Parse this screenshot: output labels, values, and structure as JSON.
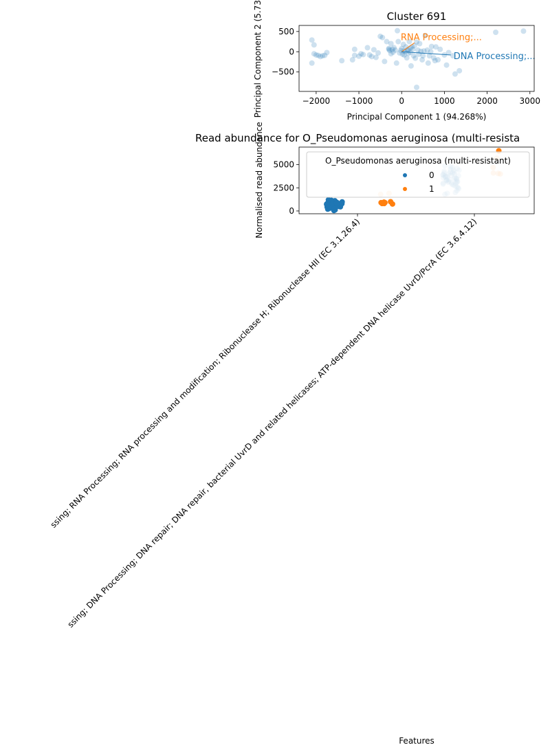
{
  "chart_data": [
    {
      "type": "scatter",
      "title": "Cluster 691",
      "xlabel": "Principal Component 1 (94.268%)",
      "ylabel": "Principal Component 2 (5.73",
      "xlim": [
        -2400,
        3100
      ],
      "ylim": [
        -980,
        650
      ],
      "xticks": [
        -2000,
        -1000,
        0,
        1000,
        2000,
        3000
      ],
      "xtick_labels": [
        "−2000",
        "−1000",
        "0",
        "1000",
        "2000",
        "3000"
      ],
      "yticks": [
        500,
        0,
        -500
      ],
      "ytick_labels": [
        "500",
        "0",
        "−500"
      ],
      "point_color": "#1f77b4",
      "points": [
        [
          -2100,
          290
        ],
        [
          -2050,
          -50
        ],
        [
          -2000,
          -80
        ],
        [
          -1950,
          -90
        ],
        [
          -1900,
          -120
        ],
        [
          -1850,
          -100
        ],
        [
          -1800,
          -90
        ],
        [
          -1750,
          -20
        ],
        [
          -2050,
          170
        ],
        [
          -2100,
          -280
        ],
        [
          -1400,
          -220
        ],
        [
          -1150,
          -200
        ],
        [
          -1100,
          60
        ],
        [
          -1100,
          -90
        ],
        [
          -1000,
          -110
        ],
        [
          -950,
          -50
        ],
        [
          -900,
          -70
        ],
        [
          -800,
          100
        ],
        [
          -750,
          -80
        ],
        [
          -700,
          -120
        ],
        [
          -650,
          50
        ],
        [
          -600,
          -140
        ],
        [
          -550,
          -30
        ],
        [
          -500,
          380
        ],
        [
          -450,
          350
        ],
        [
          -400,
          -240
        ],
        [
          -350,
          250
        ],
        [
          -300,
          80
        ],
        [
          -280,
          30
        ],
        [
          -250,
          200
        ],
        [
          -220,
          60
        ],
        [
          -200,
          -10
        ],
        [
          -180,
          100
        ],
        [
          -150,
          40
        ],
        [
          -120,
          -280
        ],
        [
          -100,
          520
        ],
        [
          -80,
          250
        ],
        [
          -50,
          -30
        ],
        [
          -20,
          30
        ],
        [
          0,
          80
        ],
        [
          20,
          -60
        ],
        [
          40,
          180
        ],
        [
          60,
          -80
        ],
        [
          80,
          0
        ],
        [
          100,
          120
        ],
        [
          120,
          -150
        ],
        [
          140,
          50
        ],
        [
          160,
          -40
        ],
        [
          180,
          250
        ],
        [
          200,
          -10
        ],
        [
          220,
          -350
        ],
        [
          240,
          120
        ],
        [
          260,
          60
        ],
        [
          280,
          -100
        ],
        [
          300,
          150
        ],
        [
          320,
          -160
        ],
        [
          350,
          240
        ],
        [
          380,
          40
        ],
        [
          400,
          -60
        ],
        [
          420,
          200
        ],
        [
          450,
          10
        ],
        [
          480,
          -200
        ],
        [
          500,
          -100
        ],
        [
          520,
          20
        ],
        [
          550,
          400
        ],
        [
          600,
          40
        ],
        [
          620,
          -280
        ],
        [
          650,
          -100
        ],
        [
          680,
          0
        ],
        [
          700,
          130
        ],
        [
          750,
          -150
        ],
        [
          780,
          -220
        ],
        [
          800,
          120
        ],
        [
          850,
          -200
        ],
        [
          900,
          60
        ],
        [
          1000,
          -80
        ],
        [
          1050,
          -330
        ],
        [
          1100,
          -20
        ],
        [
          1200,
          -100
        ],
        [
          1250,
          -550
        ],
        [
          1350,
          -470
        ],
        [
          2200,
          480
        ],
        [
          2850,
          510
        ],
        [
          350,
          -880
        ],
        [
          -300,
          60
        ],
        [
          -250,
          -50
        ],
        [
          50,
          20
        ],
        [
          150,
          30
        ],
        [
          200,
          90
        ]
      ],
      "loadings": [
        {
          "label": "RNA Processing;...",
          "x": 300,
          "y": 220,
          "color": "#ff7f0e"
        },
        {
          "label": "DNA Processing;...",
          "x": 1150,
          "y": -80,
          "color": "#1f77b4"
        }
      ]
    },
    {
      "type": "strip",
      "title": "Read abundance for O_Pseudomonas aeruginosa (multi-resista",
      "xlabel": "Features",
      "ylabel": "Normalised read abundance",
      "ylim": [
        -300,
        6900
      ],
      "yticks": [
        0,
        2500,
        5000
      ],
      "ytick_labels": [
        "0",
        "2500",
        "5000"
      ],
      "categories": [
        "RNA Processing; RNA Processing; RNA processing and modification; Ribonuclease H; Ribonuclease HII (EC 3.1.26.4)",
        "DNA Processing; DNA Processing; DNA repair; DNA repair, bacterial UvrD and related helicases; ATP-dependent DNA helicase UvrD/PcrA (EC 3.6.4.12)"
      ],
      "category_prefix_shown": [
        "ssing; ",
        "ssing; "
      ],
      "legend": {
        "title": "O_Pseudomonas aeruginosa (multi-resistant)",
        "entries": [
          "0",
          "1"
        ],
        "colors": [
          "#1f77b4",
          "#ff7f0e"
        ],
        "placement": "upper-right"
      },
      "series": [
        {
          "name": "0",
          "category_index": 0,
          "color": "#1f77b4",
          "alpha": 1.0,
          "values": [
            50,
            120,
            200,
            300,
            350,
            400,
            420,
            450,
            480,
            500,
            520,
            540,
            560,
            580,
            600,
            620,
            640,
            660,
            680,
            700,
            720,
            740,
            760,
            780,
            800,
            820,
            840,
            860,
            880,
            900,
            920,
            940,
            960,
            980,
            1000,
            1050,
            1100,
            1150,
            1200,
            650,
            700,
            750,
            800,
            850,
            900,
            550,
            600,
            650,
            700,
            750,
            500,
            520,
            560,
            600,
            640,
            680,
            720,
            760,
            800,
            840
          ]
        },
        {
          "name": "1",
          "category_index": 0,
          "color": "#ff7f0e",
          "alpha": 1.0,
          "values": [
            750,
            800,
            850,
            900,
            950,
            1000,
            800,
            850,
            900
          ]
        },
        {
          "name": "1-faded",
          "category_index": 0,
          "color": "#ff7f0e",
          "alpha": 0.25,
          "values": [
            1800,
            1900
          ]
        },
        {
          "name": "0-faded",
          "category_index": 1,
          "color": "#1f77b4",
          "alpha": 0.22,
          "values": [
            1800,
            1900,
            2000,
            2200,
            2400,
            2500,
            2600,
            2700,
            2800,
            2900,
            3000,
            3100,
            3200,
            3300,
            3400,
            3500,
            3600,
            3700,
            3800,
            3900,
            4000,
            4100,
            4200,
            4300,
            4400,
            4500,
            4600,
            4700,
            4800,
            4900,
            3000,
            3200,
            3400,
            3600,
            3800,
            4000,
            4200,
            4400,
            3100,
            3300,
            3500,
            3700,
            3900,
            4100,
            2900,
            3050,
            3250,
            3450,
            3650,
            3850
          ]
        },
        {
          "name": "1-faded2",
          "category_index": 1,
          "color": "#ff7f0e",
          "alpha": 0.3,
          "values": [
            4700,
            5700,
            4000,
            4100,
            4050
          ]
        },
        {
          "name": "1b",
          "category_index": 1,
          "color": "#ff7f0e",
          "alpha": 1.0,
          "values": [
            6500
          ]
        }
      ]
    }
  ]
}
